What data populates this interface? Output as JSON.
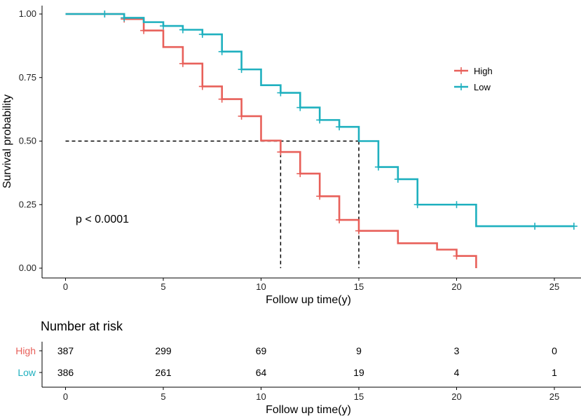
{
  "chart_data": {
    "type": "line",
    "subtype": "kaplan-meier",
    "xlabel": "Follow up time(y)",
    "ylabel": "Survival probability",
    "xlim": [
      -2.5,
      26
    ],
    "ylim": [
      -0.05,
      1.03
    ],
    "x_ticks": [
      0,
      5,
      10,
      15,
      20,
      25
    ],
    "x_tick_labels": [
      "0",
      "5",
      "10",
      "15",
      "20",
      "25"
    ],
    "y_ticks": [
      0.0,
      0.25,
      0.5,
      0.75,
      1.0
    ],
    "y_tick_labels": [
      "0.00",
      "0.25",
      "0.50",
      "0.75",
      "1.00"
    ],
    "grid": false,
    "legend_position": "right",
    "annotation": "p < 0.0001",
    "median_survival": [
      {
        "group": "High",
        "time": 11,
        "probability": 0.5
      },
      {
        "group": "Low",
        "time": 15,
        "probability": 0.5
      }
    ],
    "series": [
      {
        "name": "High",
        "color": "#e8605a",
        "steps": [
          [
            0,
            1.0
          ],
          [
            3,
            0.98
          ],
          [
            4,
            0.935
          ],
          [
            5,
            0.87
          ],
          [
            6,
            0.805
          ],
          [
            7,
            0.715
          ],
          [
            8,
            0.665
          ],
          [
            9,
            0.598
          ],
          [
            10,
            0.502
          ],
          [
            11,
            0.457
          ],
          [
            12,
            0.372
          ],
          [
            13,
            0.283
          ],
          [
            14,
            0.19
          ],
          [
            15,
            0.147
          ],
          [
            17,
            0.098
          ],
          [
            19,
            0.073
          ],
          [
            20,
            0.048
          ],
          [
            21,
            0.0
          ]
        ],
        "censor": [
          [
            2,
            1.0
          ],
          [
            3,
            0.98
          ],
          [
            4,
            0.935
          ],
          [
            6,
            0.805
          ],
          [
            7,
            0.715
          ],
          [
            8,
            0.665
          ],
          [
            9,
            0.598
          ],
          [
            11,
            0.457
          ],
          [
            12,
            0.372
          ],
          [
            13,
            0.283
          ],
          [
            14,
            0.19
          ],
          [
            15,
            0.147
          ],
          [
            20,
            0.048
          ]
        ]
      },
      {
        "name": "Low",
        "color": "#1fb0bf",
        "steps": [
          [
            0,
            1.0
          ],
          [
            3,
            0.985
          ],
          [
            4,
            0.968
          ],
          [
            5,
            0.953
          ],
          [
            6,
            0.938
          ],
          [
            7,
            0.92
          ],
          [
            8,
            0.852
          ],
          [
            9,
            0.782
          ],
          [
            10,
            0.72
          ],
          [
            11,
            0.69
          ],
          [
            12,
            0.632
          ],
          [
            13,
            0.583
          ],
          [
            14,
            0.556
          ],
          [
            15,
            0.5
          ],
          [
            16,
            0.398
          ],
          [
            17,
            0.35
          ],
          [
            18,
            0.25
          ],
          [
            21,
            0.165
          ],
          [
            26,
            0.165
          ]
        ],
        "censor": [
          [
            2,
            1.0
          ],
          [
            3,
            0.985
          ],
          [
            5,
            0.953
          ],
          [
            6,
            0.938
          ],
          [
            7,
            0.92
          ],
          [
            8,
            0.852
          ],
          [
            9,
            0.782
          ],
          [
            11,
            0.69
          ],
          [
            12,
            0.632
          ],
          [
            13,
            0.583
          ],
          [
            14,
            0.556
          ],
          [
            16,
            0.398
          ],
          [
            17,
            0.35
          ],
          [
            18,
            0.25
          ],
          [
            20,
            0.25
          ],
          [
            24,
            0.165
          ],
          [
            26,
            0.165
          ]
        ]
      }
    ],
    "risk_table": {
      "title": "Number at risk",
      "xlabel": "Follow up time(y)",
      "times": [
        0,
        5,
        10,
        15,
        20,
        25
      ],
      "time_labels": [
        "0",
        "5",
        "10",
        "15",
        "20",
        "25"
      ],
      "rows": [
        {
          "label": "High",
          "color": "#e8605a",
          "values": [
            "387",
            "299",
            "69",
            "9",
            "3",
            "0"
          ]
        },
        {
          "label": "Low",
          "color": "#1fb0bf",
          "values": [
            "386",
            "261",
            "64",
            "19",
            "4",
            "1"
          ]
        }
      ]
    }
  }
}
